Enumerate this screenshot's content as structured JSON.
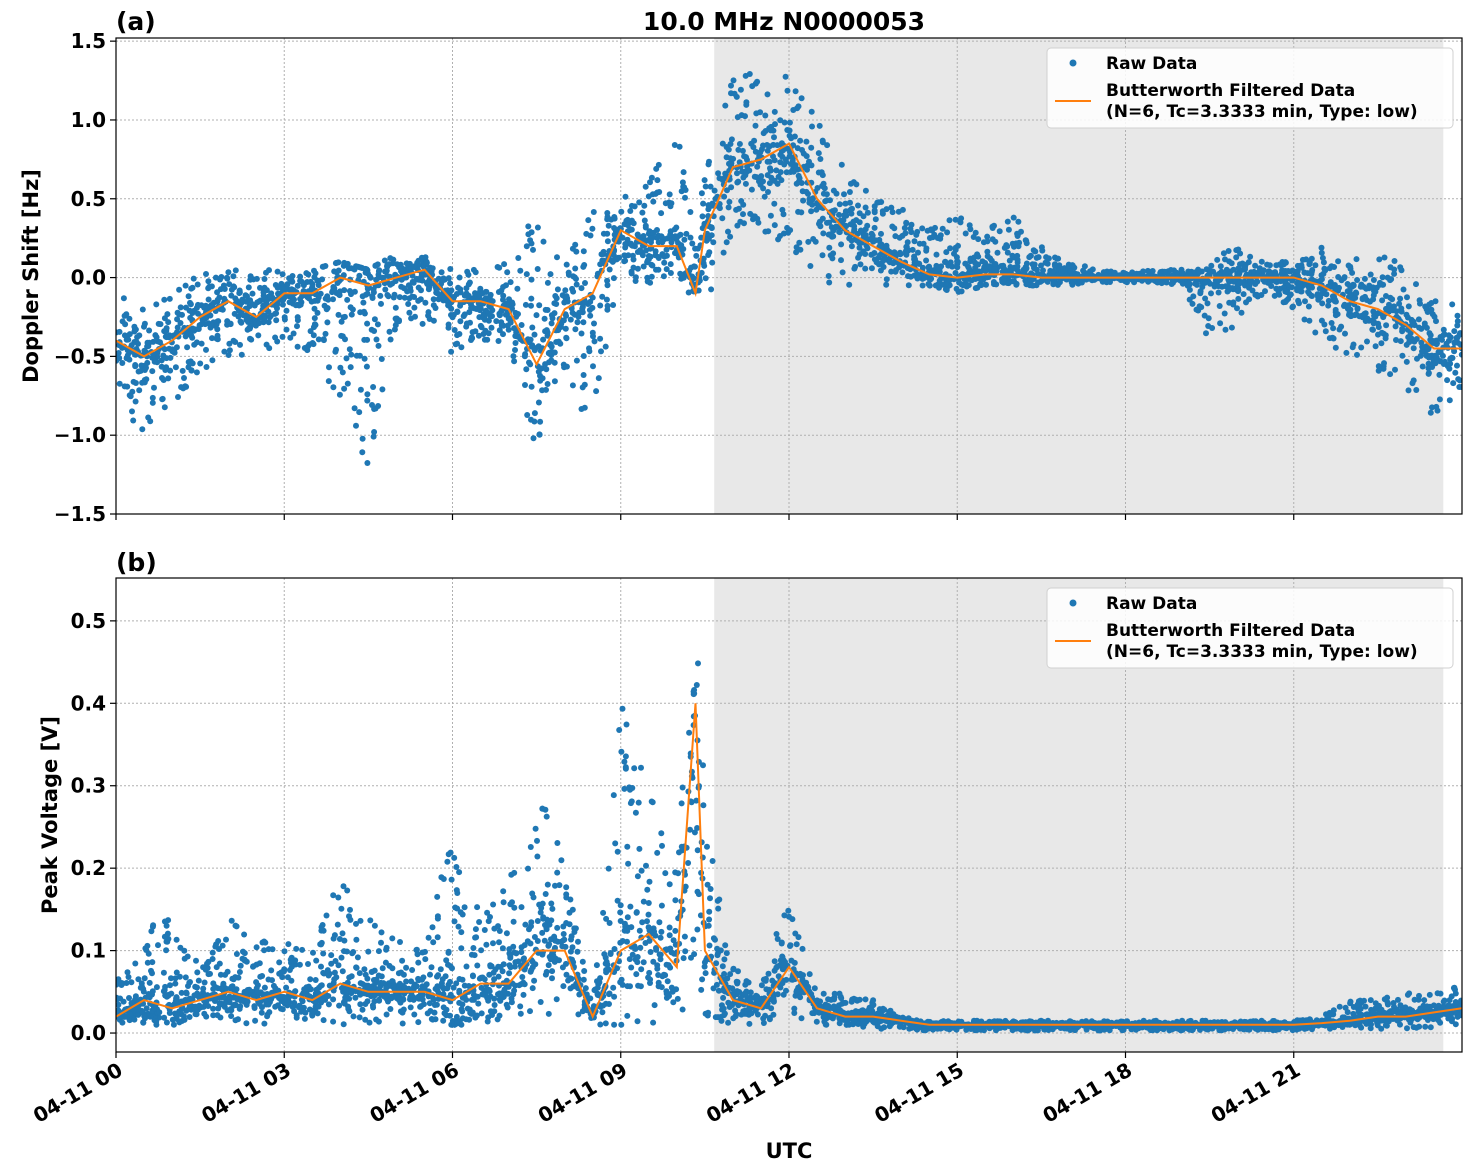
{
  "chart_data": [
    {
      "type": "scatter",
      "panel_label": "(a)",
      "title": "10.0 MHz N0000053",
      "ylabel": "Doppler Shift [Hz]",
      "xlabel": "",
      "xlim": [
        "04-11 00:00",
        "04-12 00:00"
      ],
      "ylim": [
        -1.5,
        1.52
      ],
      "yticks": [
        -1.5,
        -1.0,
        -0.5,
        0.0,
        0.5,
        1.0,
        1.5
      ],
      "ytick_labels": [
        "−1.5",
        "−1.0",
        "−0.5",
        "0.0",
        "0.5",
        "1.0",
        "1.5"
      ],
      "grid": true,
      "shaded_span": [
        "04-11 10:40",
        "04-11 23:40"
      ],
      "legend": {
        "placement": "top-right",
        "entries": [
          "Raw Data",
          "Butterworth Filtered Data",
          "(N=6, Tc=3.3333 min, Type: low)"
        ]
      },
      "colors": {
        "raw": "#1f77b4",
        "filtered": "#ff7f0e",
        "span": "#e8e8e8"
      },
      "x": [
        "00:00",
        "00:30",
        "01:00",
        "01:30",
        "02:00",
        "02:30",
        "03:00",
        "03:30",
        "04:00",
        "04:30",
        "05:00",
        "05:30",
        "06:00",
        "06:30",
        "07:00",
        "07:30",
        "08:00",
        "08:30",
        "09:00",
        "09:30",
        "10:00",
        "10:20",
        "10:30",
        "11:00",
        "11:30",
        "12:00",
        "12:30",
        "13:00",
        "13:30",
        "14:00",
        "14:30",
        "15:00",
        "15:30",
        "16:00",
        "16:30",
        "17:00",
        "17:30",
        "18:00",
        "18:30",
        "19:00",
        "19:30",
        "20:00",
        "20:30",
        "21:00",
        "21:30",
        "22:00",
        "22:30",
        "23:00",
        "23:30",
        "24:00"
      ],
      "filtered": [
        -0.4,
        -0.5,
        -0.4,
        -0.25,
        -0.15,
        -0.25,
        -0.1,
        -0.1,
        0.0,
        -0.05,
        0.0,
        0.05,
        -0.15,
        -0.15,
        -0.2,
        -0.55,
        -0.2,
        -0.1,
        0.3,
        0.2,
        0.2,
        -0.1,
        0.3,
        0.7,
        0.75,
        0.85,
        0.5,
        0.3,
        0.2,
        0.1,
        0.02,
        0.0,
        0.02,
        0.02,
        0.0,
        0.0,
        0.0,
        0.0,
        0.0,
        0.0,
        0.0,
        0.0,
        0.0,
        0.0,
        -0.05,
        -0.15,
        -0.2,
        -0.3,
        -0.45,
        -0.45
      ],
      "raw_min": [
        -0.8,
        -1.0,
        -0.8,
        -0.6,
        -0.5,
        -0.5,
        -0.4,
        -0.5,
        -0.8,
        -1.2,
        -0.3,
        -0.3,
        -0.5,
        -0.4,
        -0.5,
        -1.1,
        -0.6,
        -1.0,
        0.0,
        -0.05,
        0.05,
        -0.2,
        -0.2,
        0.3,
        0.3,
        0.2,
        0.0,
        -0.1,
        -0.05,
        -0.05,
        -0.05,
        -0.1,
        -0.05,
        -0.05,
        -0.05,
        -0.05,
        -0.03,
        -0.03,
        -0.03,
        -0.05,
        -0.4,
        -0.3,
        -0.1,
        -0.2,
        -0.4,
        -0.5,
        -0.6,
        -0.7,
        -0.9,
        -0.7
      ],
      "raw_max": [
        -0.1,
        -0.2,
        -0.1,
        0.05,
        0.05,
        0.1,
        0.05,
        0.05,
        0.1,
        0.05,
        0.15,
        0.15,
        0.05,
        0.05,
        0.15,
        0.4,
        0.1,
        0.5,
        0.5,
        0.6,
        1.0,
        0.2,
        0.7,
        1.3,
        1.3,
        1.35,
        1.0,
        0.7,
        0.5,
        0.45,
        0.3,
        0.4,
        0.3,
        0.4,
        0.2,
        0.1,
        0.05,
        0.05,
        0.05,
        0.05,
        0.1,
        0.25,
        0.1,
        0.1,
        0.2,
        0.1,
        0.2,
        0.1,
        -0.1,
        -0.2
      ]
    },
    {
      "type": "scatter",
      "panel_label": "(b)",
      "ylabel": "Peak Voltage [V]",
      "xlabel": "UTC",
      "xlim": [
        "04-11 00:00",
        "04-12 00:00"
      ],
      "ylim": [
        -0.023,
        0.552
      ],
      "yticks": [
        0.0,
        0.1,
        0.2,
        0.3,
        0.4,
        0.5
      ],
      "ytick_labels": [
        "0.0",
        "0.1",
        "0.2",
        "0.3",
        "0.4",
        "0.5"
      ],
      "xticks": [
        "04-11 00",
        "04-11 03",
        "04-11 06",
        "04-11 09",
        "04-11 12",
        "04-11 15",
        "04-11 18",
        "04-11 21"
      ],
      "grid": true,
      "shaded_span": [
        "04-11 10:40",
        "04-11 23:40"
      ],
      "legend": {
        "placement": "top-right",
        "entries": [
          "Raw Data",
          "Butterworth Filtered Data",
          "(N=6, Tc=3.3333 min, Type: low)"
        ]
      },
      "colors": {
        "raw": "#1f77b4",
        "filtered": "#ff7f0e",
        "span": "#e8e8e8"
      },
      "x": [
        "00:00",
        "00:30",
        "01:00",
        "01:30",
        "02:00",
        "02:30",
        "03:00",
        "03:30",
        "04:00",
        "04:30",
        "05:00",
        "05:30",
        "06:00",
        "06:30",
        "07:00",
        "07:30",
        "08:00",
        "08:30",
        "09:00",
        "09:30",
        "10:00",
        "10:20",
        "10:30",
        "11:00",
        "11:30",
        "12:00",
        "12:30",
        "13:00",
        "13:30",
        "14:00",
        "14:30",
        "15:00",
        "15:30",
        "16:00",
        "16:30",
        "17:00",
        "17:30",
        "18:00",
        "18:30",
        "19:00",
        "19:30",
        "20:00",
        "20:30",
        "21:00",
        "21:30",
        "22:00",
        "22:30",
        "23:00",
        "23:30",
        "24:00"
      ],
      "filtered": [
        0.02,
        0.04,
        0.03,
        0.04,
        0.05,
        0.04,
        0.05,
        0.04,
        0.06,
        0.05,
        0.05,
        0.05,
        0.04,
        0.06,
        0.06,
        0.1,
        0.1,
        0.02,
        0.1,
        0.12,
        0.08,
        0.4,
        0.1,
        0.04,
        0.03,
        0.08,
        0.03,
        0.02,
        0.02,
        0.015,
        0.01,
        0.01,
        0.01,
        0.01,
        0.01,
        0.01,
        0.01,
        0.01,
        0.01,
        0.01,
        0.01,
        0.01,
        0.01,
        0.01,
        0.012,
        0.015,
        0.02,
        0.02,
        0.025,
        0.03
      ],
      "raw_min": [
        0.01,
        0.01,
        0.01,
        0.01,
        0.01,
        0.01,
        0.01,
        0.01,
        0.01,
        0.01,
        0.01,
        0.01,
        0.01,
        0.01,
        0.02,
        0.02,
        0.02,
        0.01,
        0.01,
        0.01,
        0.01,
        0.05,
        0.02,
        0.01,
        0.01,
        0.02,
        0.01,
        0.01,
        0.005,
        0.005,
        0.003,
        0.003,
        0.003,
        0.003,
        0.003,
        0.003,
        0.003,
        0.003,
        0.003,
        0.003,
        0.003,
        0.003,
        0.003,
        0.003,
        0.005,
        0.005,
        0.005,
        0.005,
        0.005,
        0.01
      ],
      "raw_max": [
        0.06,
        0.13,
        0.14,
        0.08,
        0.14,
        0.12,
        0.11,
        0.1,
        0.19,
        0.15,
        0.12,
        0.1,
        0.25,
        0.15,
        0.18,
        0.32,
        0.2,
        0.03,
        0.4,
        0.3,
        0.2,
        0.52,
        0.3,
        0.08,
        0.06,
        0.17,
        0.06,
        0.05,
        0.04,
        0.02,
        0.015,
        0.015,
        0.015,
        0.015,
        0.015,
        0.015,
        0.015,
        0.015,
        0.015,
        0.015,
        0.015,
        0.015,
        0.015,
        0.015,
        0.02,
        0.04,
        0.04,
        0.05,
        0.05,
        0.06
      ]
    }
  ]
}
